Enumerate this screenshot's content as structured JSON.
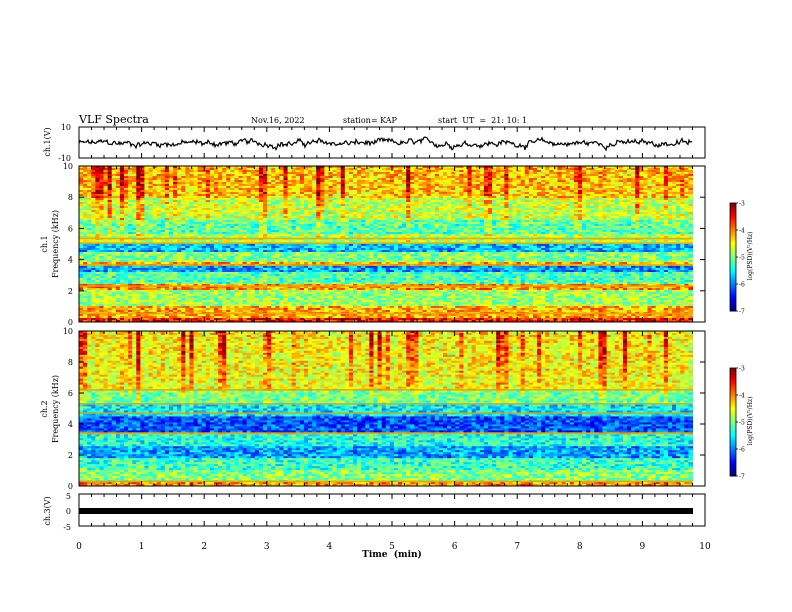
{
  "header": {
    "title": "VLF Spectra",
    "date": "Nov.16, 2022",
    "station": "station= KAP",
    "start_ut": "start  UT  =  21: 10: 1"
  },
  "chart_data": [
    {
      "type": "line",
      "panel": "ch1-waveform",
      "ylabel": "ch.1(V)",
      "ylim": [
        -10,
        10
      ],
      "yticks": [
        "10",
        "-10"
      ],
      "xlim": [
        0,
        10
      ],
      "note_data": "noisy waveform around about -0.5 V with roughly +/-4 V swings, ends at ~9.8 min"
    },
    {
      "type": "heatmap",
      "panel": "ch1-spectrogram",
      "channel_label": "ch.1",
      "ylabel": "Frequency (kHz)",
      "ylim": [
        0,
        10
      ],
      "yticks": [
        "0",
        "2",
        "4",
        "6",
        "8",
        "10"
      ],
      "xlim": [
        0,
        10
      ],
      "data_end_min": 9.8,
      "colorbar": {
        "label": "log(PSD)(V²/Hz)",
        "range": [
          -7,
          -3
        ],
        "ticks": [
          "-3",
          "-4",
          "-5",
          "-6",
          "-7"
        ]
      },
      "bands": [
        {
          "f0": 0.0,
          "f1": 0.25,
          "level": -3.6
        },
        {
          "f0": 0.25,
          "f1": 1.0,
          "level": -4.2
        },
        {
          "f0": 1.0,
          "f1": 2.0,
          "level": -4.9
        },
        {
          "f0": 2.0,
          "f1": 2.4,
          "level": -4.1
        },
        {
          "f0": 2.4,
          "f1": 3.2,
          "level": -5.2
        },
        {
          "f0": 3.2,
          "f1": 3.6,
          "level": -5.9
        },
        {
          "f0": 3.6,
          "f1": 3.8,
          "level": -4.2
        },
        {
          "f0": 3.8,
          "f1": 4.5,
          "level": -5.0
        },
        {
          "f0": 4.5,
          "f1": 5.0,
          "level": -5.8
        },
        {
          "f0": 5.0,
          "f1": 5.6,
          "level": -4.8
        },
        {
          "f0": 5.6,
          "f1": 6.5,
          "level": -5.2
        },
        {
          "f0": 6.5,
          "f1": 8.0,
          "level": -4.8
        },
        {
          "f0": 8.0,
          "f1": 10.0,
          "level": -4.4
        }
      ],
      "lines_khz": [
        0.55,
        2.3,
        3.65,
        5.35,
        5.05
      ]
    },
    {
      "type": "heatmap",
      "panel": "ch2-spectrogram",
      "channel_label": "ch.2",
      "ylabel": "Frequency (kHz)",
      "ylim": [
        0,
        10
      ],
      "yticks": [
        "0",
        "2",
        "4",
        "6",
        "8",
        "10"
      ],
      "xlim": [
        0,
        10
      ],
      "data_end_min": 9.8,
      "colorbar": {
        "label": "log(PSD)(V²/Hz)",
        "range": [
          -7,
          -3
        ],
        "ticks": [
          "-3",
          "-4",
          "-5",
          "-6",
          "-7"
        ]
      },
      "bands": [
        {
          "f0": 0.0,
          "f1": 0.3,
          "level": -4.1
        },
        {
          "f0": 0.3,
          "f1": 1.0,
          "level": -5.0
        },
        {
          "f0": 1.0,
          "f1": 1.8,
          "level": -5.3
        },
        {
          "f0": 1.8,
          "f1": 2.6,
          "level": -5.9
        },
        {
          "f0": 2.6,
          "f1": 3.3,
          "level": -5.4
        },
        {
          "f0": 3.3,
          "f1": 3.5,
          "level": -4.4
        },
        {
          "f0": 3.5,
          "f1": 4.5,
          "level": -6.2
        },
        {
          "f0": 4.5,
          "f1": 5.2,
          "level": -5.6
        },
        {
          "f0": 5.2,
          "f1": 6.2,
          "level": -5.1
        },
        {
          "f0": 6.2,
          "f1": 10.0,
          "level": -4.6
        }
      ],
      "lines_khz": [
        0.3,
        3.4,
        4.7,
        5.3,
        6.2
      ]
    },
    {
      "type": "line",
      "panel": "ch3-level",
      "ylabel": "ch.3(V)",
      "ylim": [
        -5,
        5
      ],
      "yticks": [
        "5",
        "0",
        "-5"
      ],
      "xlim": [
        0,
        10
      ],
      "xlabel": "Time  (min)",
      "xticks": [
        "0",
        "1",
        "2",
        "3",
        "4",
        "5",
        "6",
        "7",
        "8",
        "9",
        "10"
      ],
      "level_v": 0
    }
  ]
}
